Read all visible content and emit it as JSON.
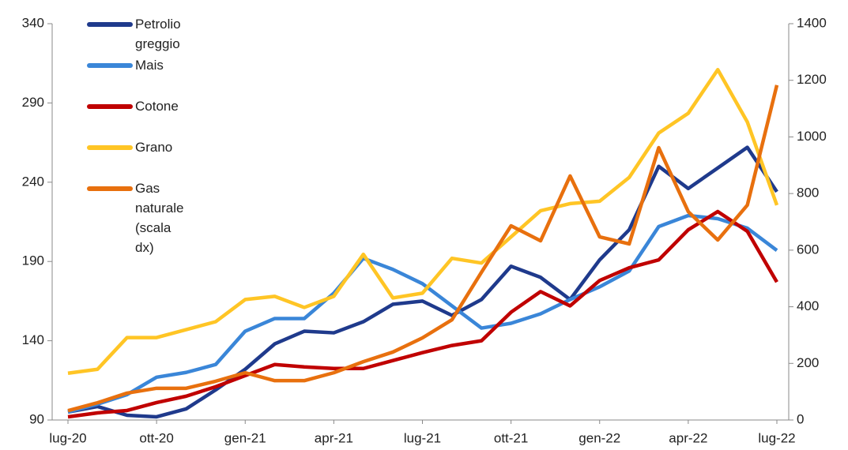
{
  "chart_data": {
    "type": "line",
    "categories": [
      "lug-20",
      null,
      null,
      "ott-20",
      null,
      null,
      "gen-21",
      null,
      null,
      "apr-21",
      null,
      null,
      "lug-21",
      null,
      null,
      "ott-21",
      null,
      null,
      "gen-22",
      null,
      null,
      "apr-22",
      null,
      null,
      "lug-22"
    ],
    "series": [
      {
        "name": "Petrolio greggio",
        "color": "#1f3a8c",
        "values": [
          95,
          98.5,
          93,
          92,
          97,
          109,
          122,
          138,
          146,
          145,
          152,
          163,
          165,
          156,
          166,
          187,
          180,
          166,
          191,
          210,
          250,
          236,
          249,
          262,
          234
        ]
      },
      {
        "name": "Mais",
        "color": "#3a86d8",
        "values": [
          95,
          100,
          106,
          117,
          120,
          125,
          146,
          154,
          154,
          170,
          192,
          185,
          176,
          162,
          148,
          151,
          157,
          166,
          174,
          184,
          212,
          219,
          217,
          211,
          197
        ]
      },
      {
        "name": "Cotone",
        "color": "#c00000",
        "values": [
          92,
          94.5,
          96,
          101,
          105,
          111,
          118,
          125,
          123.5,
          122.5,
          122.5,
          127.5,
          132.5,
          137,
          140,
          158,
          171,
          162,
          178,
          186,
          191,
          210,
          221.5,
          209,
          177
        ]
      },
      {
        "name": "Grano",
        "color": "#ffc525",
        "values": [
          119.5,
          122,
          142,
          142,
          147,
          152,
          166,
          168,
          161,
          168,
          194.5,
          167,
          170,
          192,
          189,
          205.5,
          222,
          226.5,
          228,
          243,
          271,
          283.5,
          311,
          278,
          225.5
        ]
      },
      {
        "name": "Gas naturale\n(scala dx)",
        "color": "#e8700e",
        "axis": "y2",
        "values": [
          33,
          61,
          95,
          112,
          112,
          137,
          167,
          139,
          139,
          167,
          206,
          240,
          290,
          354,
          522,
          686,
          633,
          862,
          647,
          622,
          962,
          736,
          636,
          759,
          1183
        ]
      }
    ],
    "ylim": [
      90,
      340
    ],
    "yticks": [
      90,
      140,
      190,
      240,
      290,
      340
    ],
    "y2lim": [
      0,
      1400
    ],
    "y2ticks": [
      0,
      200,
      400,
      600,
      800,
      1000,
      1200,
      1400
    ],
    "grid": false,
    "legend": "upper left"
  }
}
